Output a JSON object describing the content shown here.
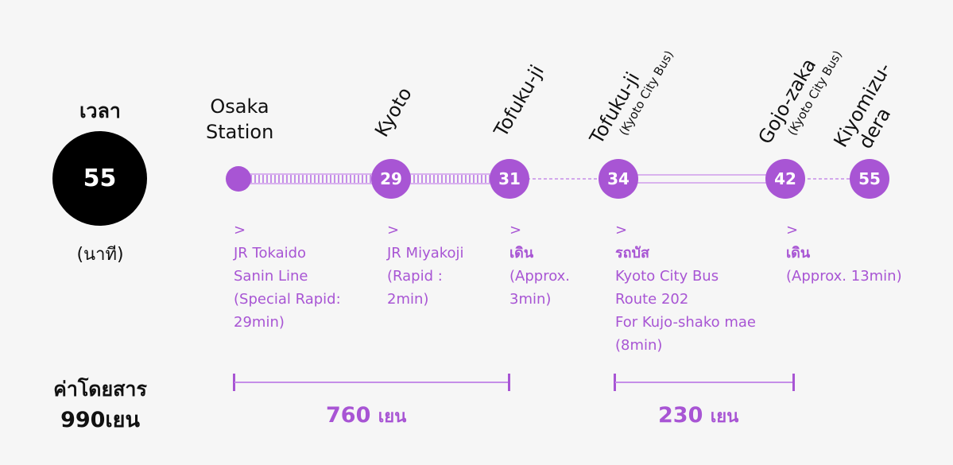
{
  "summary": {
    "time_label": "เวลา",
    "time_value": "55",
    "time_unit": "(นาที)",
    "fare_label": "ค่าโดยสาร",
    "fare_total": "990เยน"
  },
  "stations": [
    {
      "name_line1": "Osaka",
      "name_line2": "Station",
      "minutes": ""
    },
    {
      "name": "Kyoto",
      "sub": "",
      "minutes": "29"
    },
    {
      "name": "Tofuku-ji",
      "sub": "",
      "minutes": "31"
    },
    {
      "name": "Tofuku-ji",
      "sub": "(Kyoto City Bus)",
      "minutes": "34"
    },
    {
      "name": "Gojo-zaka",
      "sub": "(Kyoto City Bus)",
      "minutes": "42"
    },
    {
      "name_line1": "Kiyomizu-",
      "name_line2": "dera",
      "minutes": "55"
    }
  ],
  "segments": [
    {
      "arrow": ">",
      "lines": [
        "JR Tokaido",
        "Sanin Line",
        "(Special Rapid:",
        "29min)"
      ]
    },
    {
      "arrow": ">",
      "lines": [
        "JR Miyakoji",
        "(Rapid :",
        "2min)"
      ]
    },
    {
      "arrow": ">",
      "lines": [
        "เดิน",
        "(Approx.",
        "3min)"
      ]
    },
    {
      "arrow": ">",
      "lines": [
        "รถบัส",
        "Kyoto City Bus",
        "Route 202",
        "For Kujo-shako mae",
        "(8min)"
      ]
    },
    {
      "arrow": ">",
      "lines": [
        "เดิน",
        "(Approx. 13min)"
      ]
    }
  ],
  "fares": [
    {
      "amount": "760",
      "unit": "เยน"
    },
    {
      "amount": "230",
      "unit": "เยน"
    }
  ],
  "colors": {
    "accent": "#a855d4",
    "circle": "#000000"
  }
}
